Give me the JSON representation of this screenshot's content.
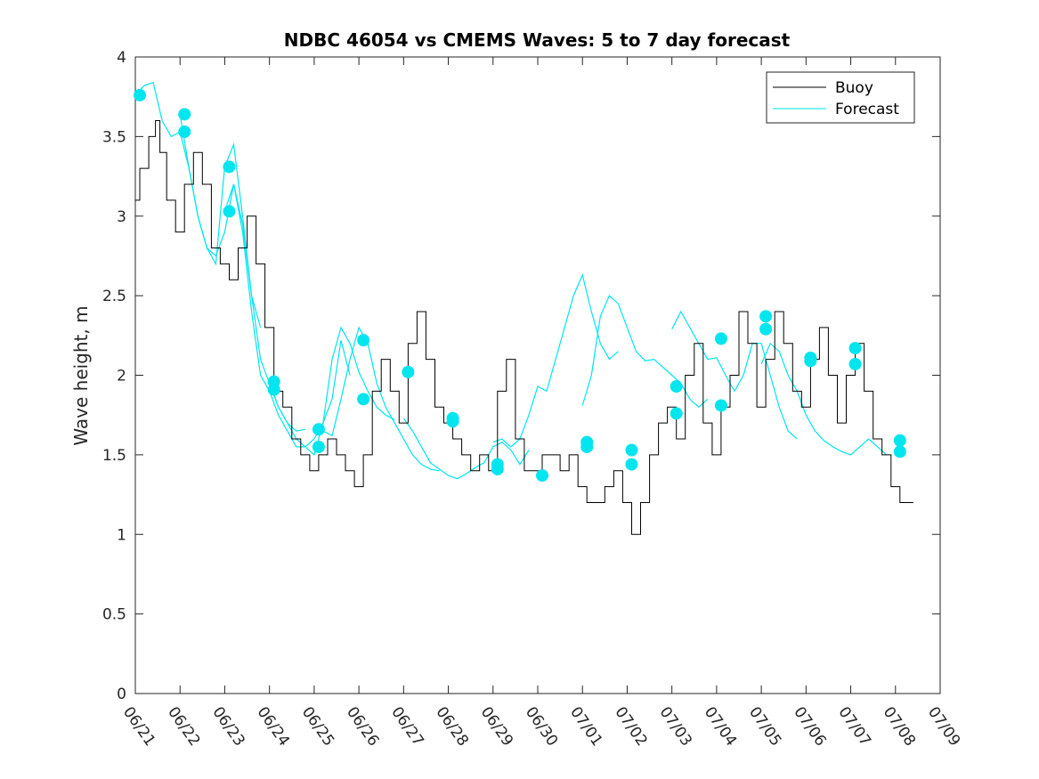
{
  "chart_data": {
    "type": "line",
    "title": "NDBC 46054 vs CMEMS Waves: 5 to 7 day forecast",
    "xlabel": "",
    "ylabel": "Wave height, m",
    "xlim": [
      "06/21",
      "07/09"
    ],
    "ylim": [
      0,
      4
    ],
    "x_ticks": [
      "06/21",
      "06/22",
      "06/23",
      "06/24",
      "06/25",
      "06/26",
      "06/27",
      "06/28",
      "06/29",
      "06/30",
      "07/01",
      "07/02",
      "07/03",
      "07/04",
      "07/05",
      "07/06",
      "07/07",
      "07/08",
      "07/09"
    ],
    "y_ticks": [
      0,
      0.5,
      1,
      1.5,
      2,
      2.5,
      3,
      3.5,
      4
    ],
    "y_tick_labels": [
      "0",
      "0.5",
      "1",
      "1.5",
      "2",
      "2.5",
      "3",
      "3.5",
      "4"
    ],
    "legend": {
      "placement": "top-right",
      "entries": [
        "Buoy",
        "Forecast"
      ]
    },
    "colors": {
      "buoy": "#000000",
      "forecast": "#00e5ee",
      "axis": "#262626"
    },
    "series": [
      {
        "name": "Buoy",
        "x_day_offset": [
          0,
          0.2,
          0.4,
          0.5,
          0.6,
          0.8,
          1.0,
          1.2,
          1.4,
          1.6,
          1.8,
          2.0,
          2.2,
          2.4,
          2.6,
          2.8,
          3.0,
          3.2,
          3.4,
          3.6,
          3.8,
          4.0,
          4.2,
          4.4,
          4.6,
          4.8,
          5.0,
          5.2,
          5.4,
          5.6,
          5.8,
          6.0,
          6.2,
          6.4,
          6.6,
          6.8,
          7.0,
          7.2,
          7.4,
          7.6,
          7.8,
          8.0,
          8.2,
          8.4,
          8.6,
          8.8,
          9.0,
          9.2,
          9.4,
          9.6,
          9.8,
          10.0,
          10.2,
          10.4,
          10.6,
          10.8,
          11.0,
          11.2,
          11.4,
          11.6,
          11.8,
          12.0,
          12.2,
          12.4,
          12.6,
          12.8,
          13.0,
          13.2,
          13.4,
          13.6,
          13.8,
          14.0,
          14.2,
          14.4,
          14.6,
          14.8,
          15.0,
          15.2,
          15.4,
          15.6,
          15.8,
          16.0,
          16.2,
          16.4,
          16.6,
          16.8,
          17.0,
          17.2,
          17.4
        ],
        "values": [
          3.1,
          3.3,
          3.5,
          3.6,
          3.4,
          3.1,
          2.9,
          3.2,
          3.4,
          3.2,
          2.8,
          2.7,
          2.6,
          2.8,
          3.0,
          2.7,
          2.3,
          1.9,
          1.8,
          1.6,
          1.5,
          1.4,
          1.5,
          1.6,
          1.5,
          1.4,
          1.3,
          1.5,
          1.9,
          2.1,
          1.9,
          1.7,
          2.2,
          2.4,
          2.1,
          1.8,
          1.7,
          1.6,
          1.5,
          1.4,
          1.5,
          1.4,
          1.9,
          2.1,
          1.6,
          1.4,
          1.4,
          1.5,
          1.5,
          1.4,
          1.5,
          1.3,
          1.2,
          1.2,
          1.3,
          1.4,
          1.2,
          1.0,
          1.2,
          1.5,
          1.7,
          1.8,
          1.6,
          2.0,
          2.2,
          1.7,
          1.5,
          1.8,
          2.0,
          2.4,
          2.2,
          1.8,
          2.1,
          2.4,
          2.2,
          1.9,
          1.8,
          2.1,
          2.3,
          2.0,
          1.7,
          2.0,
          2.2,
          1.9,
          1.6,
          1.5,
          1.3,
          1.2,
          1.2
        ]
      },
      {
        "name": "Forecast",
        "runs": [
          {
            "x_day_offset": [
              0,
              0.2,
              0.4,
              0.6,
              0.8,
              1.0,
              1.2,
              1.4,
              1.6,
              1.8,
              2.0,
              2.2,
              2.4,
              2.6,
              2.8
            ],
            "values": [
              3.76,
              3.82,
              3.84,
              3.6,
              3.5,
              3.53,
              3.3,
              3.0,
              2.8,
              2.75,
              2.9,
              3.2,
              2.95,
              2.5,
              2.3
            ]
          },
          {
            "x_day_offset": [
              1.0,
              1.2,
              1.4,
              1.6,
              1.8,
              2.0,
              2.2,
              2.4,
              2.6,
              2.8,
              3.0,
              3.2,
              3.4,
              3.6,
              3.8
            ],
            "values": [
              3.64,
              3.3,
              3.0,
              2.8,
              2.7,
              3.31,
              3.45,
              3.0,
              2.5,
              2.1,
              1.95,
              1.8,
              1.7,
              1.65,
              1.66
            ]
          },
          {
            "x_day_offset": [
              2.0,
              2.2,
              2.4,
              2.6,
              2.8,
              3.0,
              3.2,
              3.4,
              3.6,
              3.8,
              4.0,
              4.2,
              4.4,
              4.6,
              4.8
            ],
            "values": [
              3.03,
              3.2,
              2.9,
              2.4,
              2.0,
              1.9,
              1.75,
              1.65,
              1.55,
              1.55,
              1.6,
              1.7,
              1.85,
              2.22,
              2.0
            ]
          },
          {
            "x_day_offset": [
              3.0,
              3.2,
              3.4,
              3.6,
              3.8,
              4.0,
              4.2,
              4.4,
              4.6,
              4.8,
              5.0,
              5.2,
              5.4,
              5.6,
              5.8
            ],
            "values": [
              1.96,
              1.8,
              1.7,
              1.6,
              1.55,
              1.5,
              1.7,
              2.1,
              2.3,
              2.2,
              2.02,
              1.9,
              1.8,
              1.75,
              1.72
            ]
          },
          {
            "x_day_offset": [
              4.0,
              4.2,
              4.4,
              4.6,
              4.8,
              5.0,
              5.2,
              5.4,
              5.6,
              5.8,
              6.0,
              6.2,
              6.4,
              6.6,
              6.8
            ],
            "values": [
              1.66,
              1.65,
              1.62,
              1.85,
              2.1,
              2.3,
              2.2,
              1.95,
              1.8,
              1.7,
              1.6,
              1.5,
              1.44,
              1.41,
              1.4
            ]
          },
          {
            "x_day_offset": [
              6.0,
              6.2,
              6.4,
              6.6,
              6.8,
              7.0,
              7.2,
              7.4,
              7.6,
              7.8,
              8.0,
              8.2,
              8.4,
              8.6,
              8.8
            ],
            "values": [
              1.73,
              1.65,
              1.55,
              1.45,
              1.41,
              1.37,
              1.35,
              1.38,
              1.42,
              1.45,
              1.55,
              1.58,
              1.53,
              1.44,
              1.53
            ]
          },
          {
            "x_day_offset": [
              8.0,
              8.2,
              8.4,
              8.6,
              8.8,
              9.0,
              9.2,
              9.4,
              9.6,
              9.8,
              10.0,
              10.2,
              10.4,
              10.6,
              10.8
            ],
            "values": [
              1.58,
              1.6,
              1.55,
              1.6,
              1.75,
              1.93,
              1.9,
              2.1,
              2.3,
              2.5,
              2.63,
              2.4,
              2.2,
              2.1,
              2.15
            ]
          },
          {
            "x_day_offset": [
              10.0,
              10.2,
              10.4,
              10.6,
              10.8,
              11.0,
              11.2,
              11.4,
              11.6,
              11.8,
              12.0,
              12.2,
              12.4,
              12.6,
              12.8
            ],
            "values": [
              1.81,
              2.0,
              2.37,
              2.5,
              2.45,
              2.3,
              2.15,
              2.09,
              2.1,
              2.05,
              2.0,
              1.95,
              1.85,
              1.8,
              1.85
            ]
          },
          {
            "x_day_offset": [
              12.0,
              12.2,
              12.4,
              12.6,
              12.8,
              13.0,
              13.2,
              13.4,
              13.6,
              13.8,
              14.0,
              14.2,
              14.4,
              14.6,
              14.8
            ],
            "values": [
              2.29,
              2.4,
              2.3,
              2.2,
              2.1,
              2.11,
              2.0,
              1.9,
              2.0,
              2.2,
              2.2,
              2.0,
              1.8,
              1.65,
              1.6
            ]
          },
          {
            "x_day_offset": [
              14.0,
              14.2,
              14.4,
              14.6,
              14.8,
              15.0,
              15.2,
              15.4,
              15.6,
              15.8,
              16.0,
              16.2,
              16.4,
              16.6,
              16.8
            ],
            "values": [
              2.07,
              2.2,
              2.15,
              2.0,
              1.9,
              1.75,
              1.65,
              1.59,
              1.55,
              1.52,
              1.5,
              1.55,
              1.6,
              1.55,
              1.5
            ]
          }
        ]
      }
    ],
    "markers": [
      {
        "x_day_offset": 0.1,
        "value": 3.76
      },
      {
        "x_day_offset": 1.1,
        "value": 3.64
      },
      {
        "x_day_offset": 1.1,
        "value": 3.53
      },
      {
        "x_day_offset": 2.1,
        "value": 3.31
      },
      {
        "x_day_offset": 2.1,
        "value": 3.03
      },
      {
        "x_day_offset": 3.1,
        "value": 1.96
      },
      {
        "x_day_offset": 3.1,
        "value": 1.91
      },
      {
        "x_day_offset": 4.1,
        "value": 1.66
      },
      {
        "x_day_offset": 4.1,
        "value": 1.55
      },
      {
        "x_day_offset": 5.1,
        "value": 2.22
      },
      {
        "x_day_offset": 5.1,
        "value": 1.85
      },
      {
        "x_day_offset": 6.1,
        "value": 2.02
      },
      {
        "x_day_offset": 7.1,
        "value": 1.73
      },
      {
        "x_day_offset": 7.1,
        "value": 1.71
      },
      {
        "x_day_offset": 8.1,
        "value": 1.44
      },
      {
        "x_day_offset": 8.1,
        "value": 1.41
      },
      {
        "x_day_offset": 9.1,
        "value": 1.37
      },
      {
        "x_day_offset": 10.1,
        "value": 1.58
      },
      {
        "x_day_offset": 10.1,
        "value": 1.55
      },
      {
        "x_day_offset": 11.1,
        "value": 1.53
      },
      {
        "x_day_offset": 11.1,
        "value": 1.44
      },
      {
        "x_day_offset": 12.1,
        "value": 1.93
      },
      {
        "x_day_offset": 12.1,
        "value": 1.76
      },
      {
        "x_day_offset": 13.1,
        "value": 2.23
      },
      {
        "x_day_offset": 13.1,
        "value": 1.81
      },
      {
        "x_day_offset": 14.1,
        "value": 2.37
      },
      {
        "x_day_offset": 14.1,
        "value": 2.29
      },
      {
        "x_day_offset": 15.1,
        "value": 2.11
      },
      {
        "x_day_offset": 15.1,
        "value": 2.09
      },
      {
        "x_day_offset": 16.1,
        "value": 2.17
      },
      {
        "x_day_offset": 16.1,
        "value": 2.07
      },
      {
        "x_day_offset": 17.1,
        "value": 1.59
      },
      {
        "x_day_offset": 17.1,
        "value": 1.52
      }
    ]
  }
}
